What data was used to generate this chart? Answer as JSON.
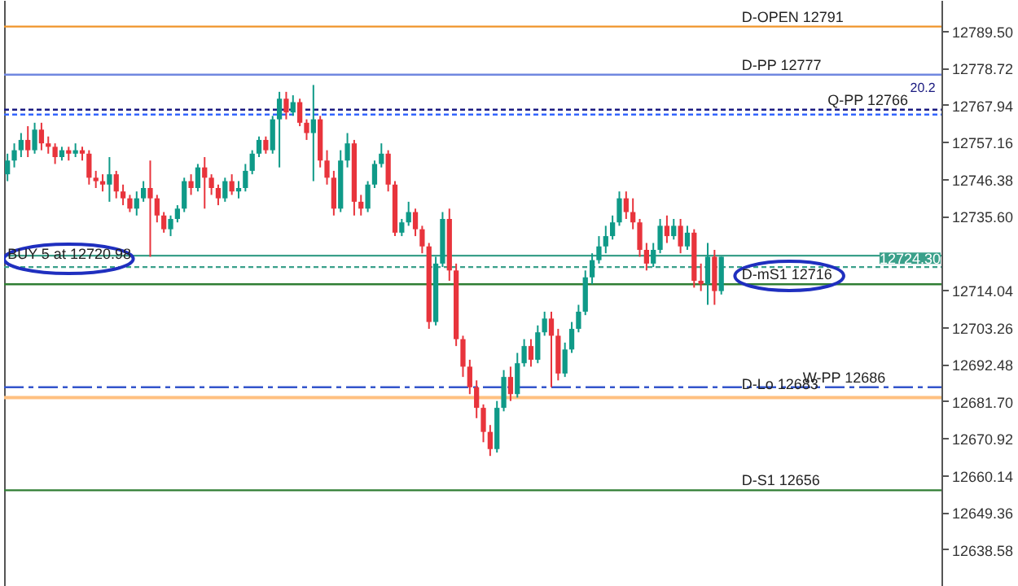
{
  "chart_data": {
    "type": "candlestick",
    "categories": [
      null,
      null,
      null,
      null,
      null,
      null,
      null,
      null,
      null,
      null,
      null,
      null,
      null,
      null,
      null,
      null,
      null,
      null,
      null,
      null,
      null,
      null,
      null,
      null,
      null,
      null,
      null,
      null,
      null,
      null,
      null,
      null,
      null,
      null,
      null,
      null,
      null,
      null,
      null,
      null,
      null,
      null,
      null,
      null,
      null,
      null,
      null,
      null,
      null,
      null,
      null,
      null,
      null,
      null,
      null,
      null,
      null,
      null,
      null,
      null,
      null,
      null,
      null,
      null,
      null,
      null,
      null,
      null,
      null,
      null,
      null,
      null,
      null,
      null,
      null,
      null,
      null,
      null,
      null,
      null,
      null,
      null,
      null,
      null,
      null,
      null,
      null,
      null,
      null,
      null,
      null,
      null,
      null,
      null,
      null,
      null,
      null,
      null,
      null,
      null,
      null,
      null,
      null,
      null,
      null,
      null,
      null,
      null,
      null,
      null,
      null,
      null,
      null,
      null,
      null,
      null,
      null,
      null,
      null,
      null,
      null,
      null,
      null,
      null,
      null,
      null,
      null,
      null,
      null,
      null,
      null,
      null,
      null,
      null,
      null,
      null,
      null,
      null
    ],
    "ohlc": [
      [
        12748,
        12754,
        12746,
        12752
      ],
      [
        12752,
        12757,
        12750,
        12755
      ],
      [
        12755,
        12760,
        12753,
        12758
      ],
      [
        12758,
        12762,
        12753,
        12755
      ],
      [
        12755,
        12763,
        12754,
        12761
      ],
      [
        12761,
        12763,
        12755,
        12757
      ],
      [
        12757,
        12759,
        12754,
        12756
      ],
      [
        12756,
        12757,
        12751,
        12753
      ],
      [
        12753,
        12756,
        12752,
        12755
      ],
      [
        12755,
        12756,
        12752,
        12754
      ],
      [
        12754,
        12757,
        12753,
        12755
      ],
      [
        12755,
        12756,
        12752,
        12754
      ],
      [
        12754,
        12755,
        12745,
        12747
      ],
      [
        12747,
        12749,
        12744,
        12746
      ],
      [
        12746,
        12748,
        12743,
        12745
      ],
      [
        12745,
        12753,
        12740,
        12748
      ],
      [
        12748,
        12749,
        12741,
        12743
      ],
      [
        12743,
        12745,
        12739,
        12741
      ],
      [
        12741,
        12742,
        12737,
        12738
      ],
      [
        12738,
        12743,
        12736,
        12741
      ],
      [
        12741,
        12746,
        12740,
        12744
      ],
      [
        12744,
        12752,
        12724,
        12741
      ],
      [
        12741,
        12742,
        12734,
        12736
      ],
      [
        12736,
        12737,
        12731,
        12732
      ],
      [
        12732,
        12736,
        12730,
        12735
      ],
      [
        12735,
        12739,
        12734,
        12738
      ],
      [
        12738,
        12747,
        12737,
        12746
      ],
      [
        12746,
        12748,
        12742,
        12744
      ],
      [
        12744,
        12751,
        12743,
        12750
      ],
      [
        12750,
        12753,
        12738,
        12747
      ],
      [
        12747,
        12748,
        12742,
        12744
      ],
      [
        12744,
        12745,
        12739,
        12741
      ],
      [
        12741,
        12747,
        12740,
        12746
      ],
      [
        12746,
        12748,
        12742,
        12743
      ],
      [
        12743,
        12746,
        12741,
        12744
      ],
      [
        12744,
        12751,
        12743,
        12749
      ],
      [
        12749,
        12755,
        12748,
        12754
      ],
      [
        12754,
        12759,
        12753,
        12758
      ],
      [
        12758,
        12759,
        12754,
        12755
      ],
      [
        12755,
        12765,
        12754,
        12764
      ],
      [
        12764,
        12772,
        12750,
        12770
      ],
      [
        12770,
        12772,
        12764,
        12766
      ],
      [
        12766,
        12771,
        12765,
        12769
      ],
      [
        12769,
        12770,
        12762,
        12763
      ],
      [
        12763,
        12764,
        12758,
        12760
      ],
      [
        12760,
        12774,
        12746,
        12764
      ],
      [
        12764,
        12765,
        12750,
        12752
      ],
      [
        12752,
        12755,
        12745,
        12747
      ],
      [
        12747,
        12749,
        12736,
        12738
      ],
      [
        12738,
        12755,
        12737,
        12752
      ],
      [
        12752,
        12760,
        12750,
        12757
      ],
      [
        12757,
        12758,
        12736,
        12740
      ],
      [
        12740,
        12742,
        12736,
        12738
      ],
      [
        12738,
        12746,
        12737,
        12745
      ],
      [
        12745,
        12752,
        12744,
        12751
      ],
      [
        12751,
        12757,
        12750,
        12754
      ],
      [
        12754,
        12755,
        12743,
        12745
      ],
      [
        12745,
        12746,
        12730,
        12731
      ],
      [
        12731,
        12735,
        12730,
        12734
      ],
      [
        12734,
        12740,
        12733,
        12737
      ],
      [
        12737,
        12738,
        12730,
        12732
      ],
      [
        12732,
        12733,
        12725,
        12727
      ],
      [
        12727,
        12728,
        12703,
        12705
      ],
      [
        12705,
        12724,
        12704,
        12722
      ],
      [
        12722,
        12737,
        12721,
        12735
      ],
      [
        12735,
        12738,
        12717,
        12720
      ],
      [
        12720,
        12722,
        12698,
        12700
      ],
      [
        12700,
        12701,
        12689,
        12692
      ],
      [
        12692,
        12694,
        12684,
        12686
      ],
      [
        12686,
        12688,
        12677,
        12680
      ],
      [
        12680,
        12681,
        12670,
        12673
      ],
      [
        12673,
        12675,
        12666,
        12668
      ],
      [
        12668,
        12682,
        12667,
        12680
      ],
      [
        12680,
        12691,
        12679,
        12689
      ],
      [
        12689,
        12692,
        12682,
        12684
      ],
      [
        12684,
        12696,
        12683,
        12693
      ],
      [
        12693,
        12700,
        12692,
        12698
      ],
      [
        12698,
        12700,
        12692,
        12694
      ],
      [
        12694,
        12704,
        12693,
        12702
      ],
      [
        12702,
        12708,
        12701,
        12706
      ],
      [
        12706,
        12708,
        12686,
        12701
      ],
      [
        12701,
        12703,
        12688,
        12690
      ],
      [
        12690,
        12699,
        12689,
        12697
      ],
      [
        12697,
        12705,
        12696,
        12703
      ],
      [
        12703,
        12710,
        12702,
        12708
      ],
      [
        12708,
        12720,
        12707,
        12718
      ],
      [
        12718,
        12725,
        12716,
        12723
      ],
      [
        12723,
        12730,
        12722,
        12727
      ],
      [
        12727,
        12733,
        12725,
        12730
      ],
      [
        12730,
        12736,
        12729,
        12734
      ],
      [
        12734,
        12743,
        12733,
        12741
      ],
      [
        12741,
        12743,
        12735,
        12737
      ],
      [
        12737,
        12741,
        12732,
        12734
      ],
      [
        12734,
        12735,
        12724,
        12726
      ],
      [
        12726,
        12728,
        12720,
        12722
      ],
      [
        12722,
        12728,
        12721,
        12726
      ],
      [
        12726,
        12735,
        12725,
        12733
      ],
      [
        12733,
        12736,
        12728,
        12730
      ],
      [
        12730,
        12735,
        12729,
        12733
      ],
      [
        12733,
        12735,
        12725,
        12727
      ],
      [
        12727,
        12733,
        12726,
        12731
      ],
      [
        12731,
        12732,
        12715,
        12717
      ],
      [
        12717,
        12722,
        12714,
        12716
      ],
      [
        12716,
        12728,
        12710,
        12724
      ],
      [
        12724,
        12726,
        12710,
        12714
      ],
      [
        12714,
        12724,
        12713,
        12724
      ],
      null,
      null,
      null,
      null,
      null,
      null,
      null,
      null,
      null,
      null,
      null,
      null,
      null,
      null,
      null,
      null,
      null,
      null,
      null,
      null,
      null,
      null,
      null,
      null,
      null,
      null,
      null,
      null,
      null,
      null,
      null,
      null
    ],
    "colors": [
      "#0f9a88",
      "#0f9a88",
      "#0f9a88",
      "#e8343c",
      "#0f9a88",
      "#e8343c",
      "#e8343c",
      "#e8343c",
      "#0f9a88",
      "#e8343c",
      "#0f9a88",
      "#e8343c",
      "#e8343c",
      "#e8343c",
      "#e8343c",
      "#0f9a88",
      "#e8343c",
      "#e8343c",
      "#e8343c",
      "#0f9a88",
      "#0f9a88",
      "#e8343c",
      "#e8343c",
      "#e8343c",
      "#0f9a88",
      "#0f9a88",
      "#0f9a88",
      "#e8343c",
      "#0f9a88",
      "#e8343c",
      "#e8343c",
      "#e8343c",
      "#0f9a88",
      "#e8343c",
      "#0f9a88",
      "#0f9a88",
      "#0f9a88",
      "#0f9a88",
      "#e8343c",
      "#0f9a88",
      "#0f9a88",
      "#e8343c",
      "#0f9a88",
      "#e8343c",
      "#e8343c",
      "#0f9a88",
      "#e8343c",
      "#e8343c",
      "#e8343c",
      "#0f9a88",
      "#0f9a88",
      "#e8343c",
      "#e8343c",
      "#0f9a88",
      "#0f9a88",
      "#0f9a88",
      "#e8343c",
      "#e8343c",
      "#0f9a88",
      "#0f9a88",
      "#e8343c",
      "#e8343c",
      "#e8343c",
      "#0f9a88",
      "#0f9a88",
      "#e8343c",
      "#e8343c",
      "#e8343c",
      "#e8343c",
      "#e8343c",
      "#e8343c",
      "#e8343c",
      "#0f9a88",
      "#0f9a88",
      "#e8343c",
      "#0f9a88",
      "#0f9a88",
      "#e8343c",
      "#0f9a88",
      "#0f9a88",
      "#e8343c",
      "#e8343c",
      "#0f9a88",
      "#0f9a88",
      "#0f9a88",
      "#0f9a88",
      "#0f9a88",
      "#0f9a88",
      "#0f9a88",
      "#0f9a88",
      "#0f9a88",
      "#e8343c",
      "#e8343c",
      "#e8343c",
      "#e8343c",
      "#0f9a88",
      "#0f9a88",
      "#e8343c",
      "#0f9a88",
      "#e8343c",
      "#0f9a88",
      "#e8343c",
      "#e8343c",
      "#0f9a88",
      "#e8343c",
      "#0f9a88",
      null,
      null,
      null,
      null,
      null,
      null,
      null,
      null,
      null,
      null,
      null,
      null,
      null,
      null,
      null,
      null,
      null,
      null,
      null,
      null,
      null,
      null,
      null,
      null,
      null,
      null,
      null,
      null,
      null,
      null,
      null,
      null
    ],
    "ylim": [
      12627.9,
      12798.5
    ],
    "yticks": [
      {
        "value": 12789.5,
        "label": "12789.50"
      },
      12778.72,
      12767.94,
      12757.16,
      12746.38,
      {
        "value": 12735.6,
        "label": "12735.60"
      },
      12714.04,
      12703.26,
      12692.48,
      {
        "value": 12681.7,
        "label": "12681.70"
      },
      12670.92,
      12660.14,
      12649.36,
      12638.58
    ],
    "tick_labels": "y",
    "ref_lines": [
      {
        "axis": "y",
        "value": 12791,
        "label": "D-OPEN 12791",
        "color": "#f0952a",
        "line_style": "solid"
      },
      {
        "axis": "y",
        "value": 12777,
        "label": "D-PP 12777",
        "color": "#7088e0",
        "line_style": "solid"
      },
      {
        "axis": "y",
        "value": 12766.8,
        "label": "Q-PP 12766",
        "color": "#1a1a80",
        "line_style": "dotted"
      },
      {
        "axis": "y",
        "value": 12765.4,
        "label": null,
        "color": "#3366ff",
        "line_style": "dotted"
      },
      {
        "axis": "y",
        "value": 12724.3,
        "label": "12724.30",
        "color": "#3aa08a",
        "line_style": "solid"
      },
      {
        "axis": "y",
        "value": 12720.98,
        "label": "BUY 5 at 12720.98",
        "color": "#3aa08a",
        "line_style": "dotted"
      },
      {
        "axis": "y",
        "value": 12716,
        "label": "D-mS1 12716",
        "color": "#2e7d32",
        "line_style": "solid"
      },
      {
        "axis": "y",
        "value": 12686,
        "label": "W-PP 12686",
        "color": "#3355cc",
        "line_style": "dashed"
      },
      {
        "axis": "y",
        "value": 12683,
        "label": "D-Lo 12683",
        "color": "#ffc080",
        "line_style": "solid"
      },
      {
        "axis": "y",
        "value": 12656,
        "label": "D-S1 12656",
        "color": "#2e7d32",
        "line_style": "solid"
      }
    ],
    "annotations": [
      "20.2"
    ]
  }
}
